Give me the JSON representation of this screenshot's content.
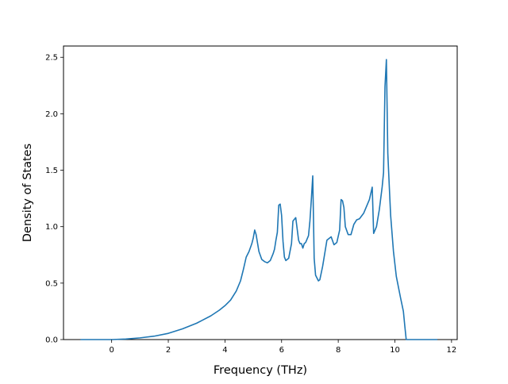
{
  "chart_data": {
    "type": "line",
    "title": "",
    "xlabel": "Frequency (THz)",
    "ylabel": "Density of States",
    "xlim": [
      -1.7,
      12.2
    ],
    "ylim": [
      0.0,
      2.6
    ],
    "xticks": [
      0,
      2,
      4,
      6,
      8,
      10,
      12
    ],
    "yticks": [
      0.0,
      0.5,
      1.0,
      1.5,
      2.0,
      2.5
    ],
    "xtick_labels": [
      "0",
      "2",
      "4",
      "6",
      "8",
      "10",
      "12"
    ],
    "ytick_labels": [
      "0.0",
      "0.5",
      "1.0",
      "1.5",
      "2.0",
      "2.5"
    ],
    "grid": false,
    "legend": "none",
    "line_color": "#1f77b4",
    "series": [
      {
        "x": [
          -1.1,
          -0.5,
          0.0,
          0.5,
          1.0,
          1.5,
          2.0,
          2.5,
          3.0,
          3.5,
          3.8,
          4.0,
          4.2,
          4.4,
          4.55,
          4.6,
          4.65,
          4.75,
          4.85,
          4.95,
          5.0,
          5.05,
          5.1,
          5.2,
          5.3,
          5.4,
          5.5,
          5.6,
          5.7,
          5.75,
          5.8,
          5.85,
          5.9,
          5.95,
          6.0,
          6.05,
          6.1,
          6.15,
          6.25,
          6.35,
          6.4,
          6.5,
          6.6,
          6.65,
          6.7,
          6.75,
          6.8,
          6.85,
          6.95,
          7.0,
          7.05,
          7.1,
          7.15,
          7.2,
          7.3,
          7.35,
          7.45,
          7.6,
          7.7,
          7.75,
          7.85,
          7.95,
          8.05,
          8.1,
          8.15,
          8.2,
          8.25,
          8.35,
          8.45,
          8.55,
          8.65,
          8.75,
          8.9,
          9.0,
          9.1,
          9.2,
          9.25,
          9.35,
          9.45,
          9.55,
          9.6,
          9.65,
          9.7,
          9.75,
          9.8,
          9.85,
          9.95,
          10.05,
          10.2,
          10.3,
          10.35,
          10.4,
          11.0,
          11.5
        ],
        "y": [
          0.0,
          0.0,
          0.0,
          0.005,
          0.015,
          0.03,
          0.055,
          0.095,
          0.145,
          0.21,
          0.26,
          0.3,
          0.35,
          0.43,
          0.52,
          0.57,
          0.62,
          0.73,
          0.78,
          0.85,
          0.9,
          0.97,
          0.93,
          0.78,
          0.71,
          0.69,
          0.68,
          0.7,
          0.76,
          0.8,
          0.88,
          0.95,
          1.19,
          1.2,
          1.1,
          0.87,
          0.73,
          0.7,
          0.72,
          0.85,
          1.05,
          1.08,
          0.88,
          0.85,
          0.85,
          0.81,
          0.85,
          0.86,
          0.92,
          1.05,
          1.24,
          1.45,
          0.72,
          0.57,
          0.52,
          0.53,
          0.65,
          0.88,
          0.9,
          0.91,
          0.84,
          0.86,
          0.97,
          1.24,
          1.23,
          1.17,
          1.0,
          0.93,
          0.93,
          1.02,
          1.06,
          1.07,
          1.12,
          1.18,
          1.24,
          1.35,
          0.94,
          1.0,
          1.15,
          1.35,
          1.48,
          2.24,
          2.48,
          1.65,
          1.37,
          1.1,
          0.78,
          0.56,
          0.37,
          0.25,
          0.12,
          0.0,
          0.0,
          0.0
        ]
      }
    ]
  }
}
